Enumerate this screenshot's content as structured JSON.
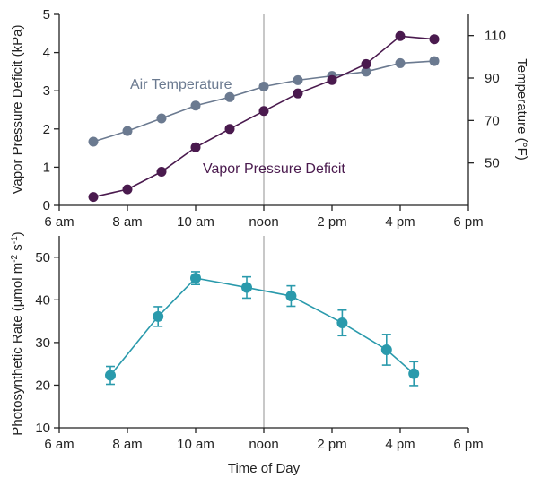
{
  "colors": {
    "vpd": "#4a1a4e",
    "air_temp": "#6b7a90",
    "photo": "#2a9aac",
    "axis": "#222222",
    "noon_line": "#aaaaaa"
  },
  "chart_data": [
    {
      "type": "line",
      "x_ticks": [
        "6 am",
        "8 am",
        "10 am",
        "noon",
        "2 pm",
        "4 pm",
        "6 pm"
      ],
      "xlim": [
        6,
        18
      ],
      "ylabel_left": "Vapor Pressure Deficit (kPa)",
      "ylim_left": [
        0,
        5
      ],
      "yticks_left": [
        "0",
        "1",
        "2",
        "3",
        "4",
        "5"
      ],
      "ylabel_right": "Temperature (°F)",
      "ylim_right": [
        30,
        120
      ],
      "yticks_right": [
        "50",
        "70",
        "90",
        "110"
      ],
      "reference_line_x": 12,
      "series": [
        {
          "name": "Air Temperature",
          "axis": "right",
          "x": [
            7,
            8,
            9,
            10,
            11,
            12,
            13,
            14,
            15,
            16,
            17
          ],
          "values": [
            60,
            65,
            71,
            77,
            81,
            86,
            89,
            91,
            93,
            97,
            98
          ]
        },
        {
          "name": "Vapor Pressure Deficit",
          "axis": "left",
          "x": [
            7,
            8,
            9,
            10,
            11,
            12,
            13,
            14,
            15,
            16,
            17
          ],
          "values": [
            0.22,
            0.42,
            0.88,
            1.52,
            2.0,
            2.47,
            2.93,
            3.28,
            3.7,
            4.43,
            4.35
          ]
        }
      ]
    },
    {
      "type": "line",
      "x_ticks": [
        "6 am",
        "8 am",
        "10 am",
        "noon",
        "2 pm",
        "4 pm",
        "6 pm"
      ],
      "xlim": [
        6,
        18
      ],
      "xlabel": "Time of Day",
      "ylabel": "Photosynthetic Rate (μmol m",
      "ylabel_sup1": "-2",
      "ylabel_mid": " s",
      "ylabel_sup2": "-1",
      "ylabel_end": ")",
      "ylim": [
        10,
        55
      ],
      "yticks": [
        "10",
        "20",
        "30",
        "40",
        "50"
      ],
      "reference_line_x": 12,
      "series": [
        {
          "x": [
            7.5,
            8.9,
            10.0,
            11.5,
            12.8,
            14.3,
            15.6,
            16.4
          ],
          "values": [
            22.3,
            36.1,
            45.1,
            42.9,
            40.9,
            34.6,
            28.3,
            22.7
          ],
          "error": [
            2.1,
            2.3,
            1.5,
            2.5,
            2.4,
            3.0,
            3.6,
            2.8
          ]
        }
      ]
    }
  ]
}
